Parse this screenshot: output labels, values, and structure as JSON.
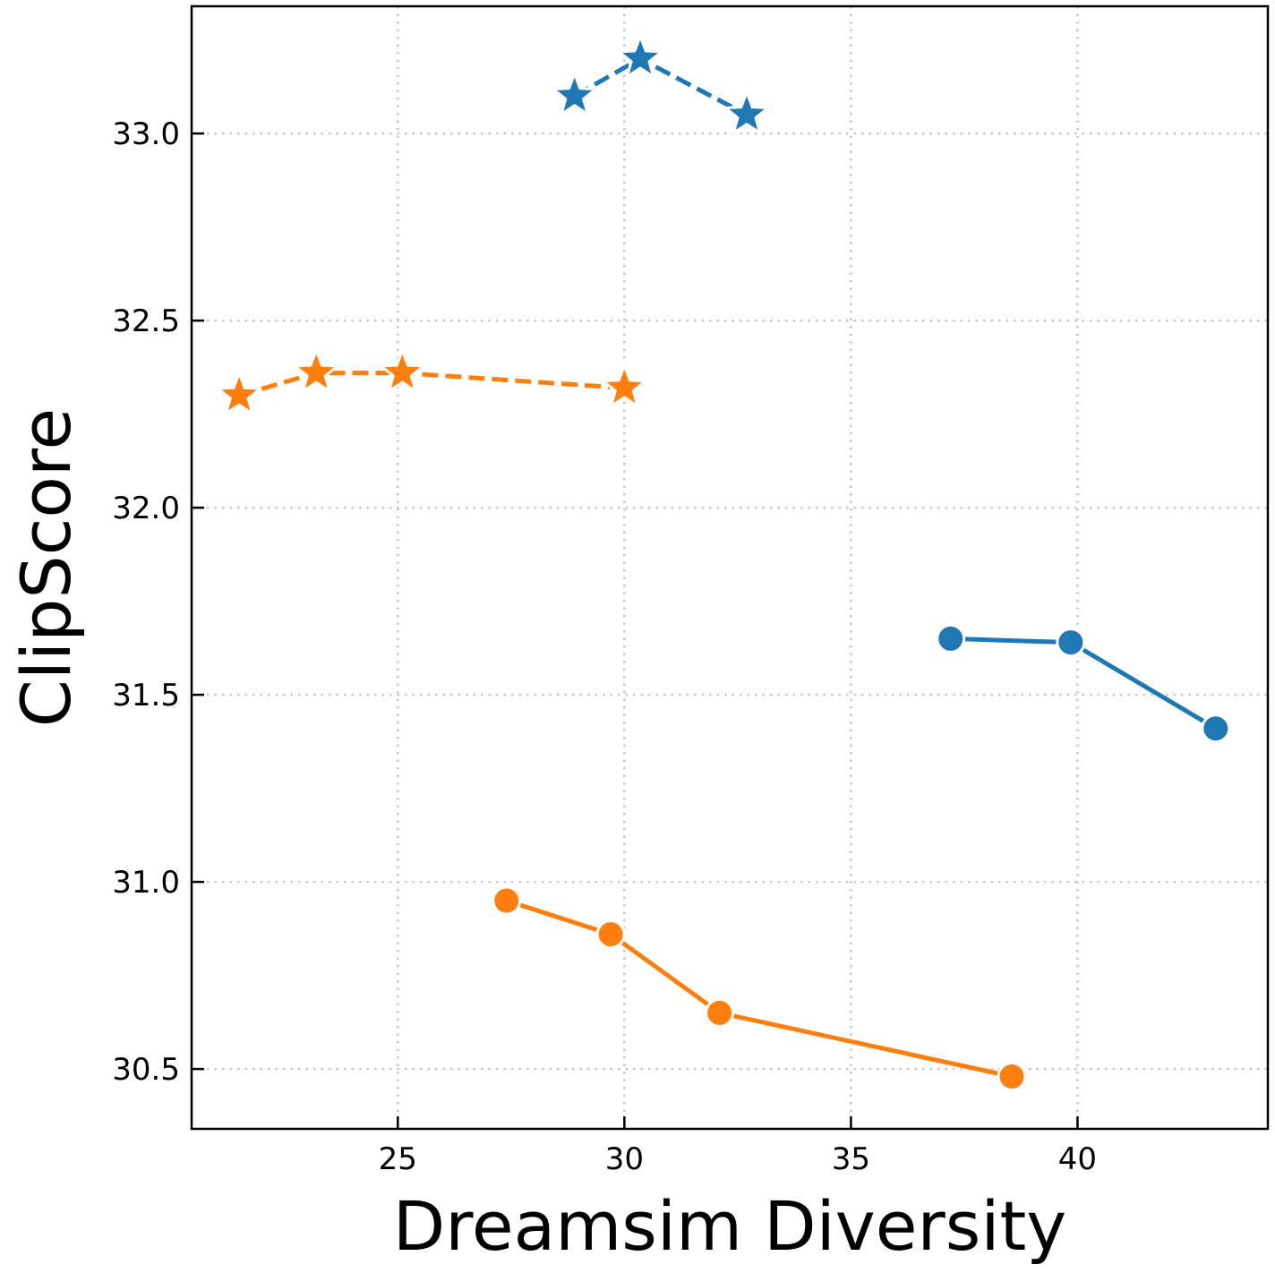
{
  "chart_data": {
    "type": "line",
    "xlabel": "Dreamsim Diversity",
    "ylabel": "ClipScore",
    "xlim": [
      20.45,
      44.2
    ],
    "ylim": [
      30.34,
      33.34
    ],
    "xticks": [
      25,
      30,
      35,
      40
    ],
    "xtick_labels": [
      "25",
      "30",
      "35",
      "40"
    ],
    "yticks": [
      30.5,
      31.0,
      31.5,
      32.0,
      32.5,
      33.0
    ],
    "ytick_labels": [
      "30.5",
      "31.0",
      "31.5",
      "32.0",
      "32.5",
      "33.0"
    ],
    "grid": true,
    "legend": false,
    "series": [
      {
        "color": "#1f77b4",
        "marker": "star",
        "linestyle": "dashed",
        "x": [
          28.9,
          30.35,
          32.7
        ],
        "y": [
          33.1,
          33.2,
          33.05
        ]
      },
      {
        "color": "#ff7f0e",
        "marker": "star",
        "linestyle": "dashed",
        "x": [
          21.5,
          23.2,
          25.1,
          30.0
        ],
        "y": [
          32.3,
          32.36,
          32.36,
          32.32
        ]
      },
      {
        "color": "#1f77b4",
        "marker": "circle",
        "linestyle": "solid",
        "x": [
          37.2,
          39.85,
          43.05
        ],
        "y": [
          31.65,
          31.64,
          31.41
        ]
      },
      {
        "color": "#ff7f0e",
        "marker": "circle",
        "linestyle": "solid",
        "x": [
          27.4,
          29.7,
          32.1,
          38.55
        ],
        "y": [
          30.95,
          30.86,
          30.65,
          30.48
        ]
      }
    ]
  }
}
